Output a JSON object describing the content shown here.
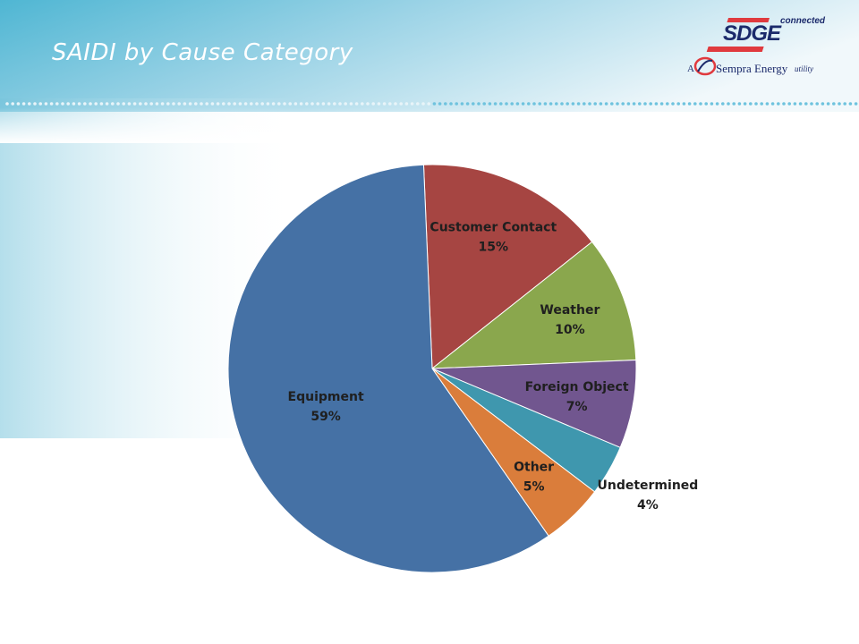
{
  "slide": {
    "title": "SAIDI by Cause Category"
  },
  "logo": {
    "brand": "SDGE",
    "tagline": "connected",
    "prefix": "A",
    "parent": "Sempra Energy",
    "suffix": "utility"
  },
  "colors": {
    "header_gradient_start": "#5bbcd6",
    "header_gradient_end": "#e9f5fa",
    "dots": "#c9e6f1",
    "logo_navy": "#1b2a6b",
    "logo_red": "#e03a3e"
  },
  "chart_data": {
    "type": "pie",
    "title": "",
    "slices": [
      {
        "label": "Customer Contact",
        "value": 15,
        "value_label": "15%",
        "color": "#a64542"
      },
      {
        "label": "Weather",
        "value": 10,
        "value_label": "10%",
        "color": "#8aa74d"
      },
      {
        "label": "Foreign Object",
        "value": 7,
        "value_label": "7%",
        "color": "#71568f"
      },
      {
        "label": "Undetermined",
        "value": 4,
        "value_label": "4%",
        "color": "#3f97ae"
      },
      {
        "label": "Other",
        "value": 5,
        "value_label": "5%",
        "color": "#da7d3b"
      },
      {
        "label": "Equipment",
        "value": 59,
        "value_label": "59%",
        "color": "#4571a5"
      }
    ]
  }
}
